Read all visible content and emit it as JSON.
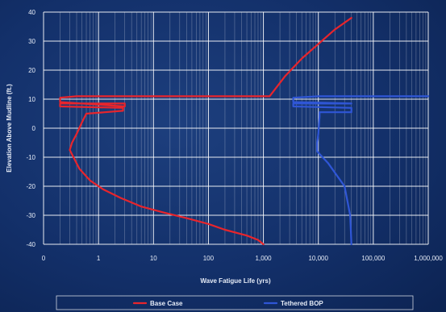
{
  "chart_data": {
    "type": "line",
    "title": "",
    "xlabel": "Wave Fatigue Life (yrs)",
    "ylabel": "Elevation Above Mudline (ft.)",
    "xscale": "log",
    "xlim": [
      0.1,
      1000000
    ],
    "ylim": [
      -40,
      40
    ],
    "xticks": [
      {
        "value": 0.1,
        "label": "0"
      },
      {
        "value": 1,
        "label": "1"
      },
      {
        "value": 10,
        "label": "10"
      },
      {
        "value": 100,
        "label": "100"
      },
      {
        "value": 1000,
        "label": "1,000"
      },
      {
        "value": 10000,
        "label": "10,000"
      },
      {
        "value": 100000,
        "label": "100,000"
      },
      {
        "value": 1000000,
        "label": "1,000,000"
      }
    ],
    "yticks": [
      {
        "value": -40,
        "label": "-40"
      },
      {
        "value": -30,
        "label": "-30"
      },
      {
        "value": -20,
        "label": "-20"
      },
      {
        "value": -10,
        "label": "-10"
      },
      {
        "value": 0,
        "label": "0"
      },
      {
        "value": 10,
        "label": "10"
      },
      {
        "value": 20,
        "label": "20"
      },
      {
        "value": 30,
        "label": "30"
      },
      {
        "value": 40,
        "label": "40"
      }
    ],
    "grid": true,
    "legend_position": "bottom",
    "series": [
      {
        "name": "Base Case",
        "color": "#e8252c",
        "points": [
          [
            1000,
            -40
          ],
          [
            800,
            -38.5
          ],
          [
            500,
            -37
          ],
          [
            200,
            -35
          ],
          [
            100,
            -33
          ],
          [
            40,
            -31
          ],
          [
            15,
            -29
          ],
          [
            6,
            -27
          ],
          [
            2.5,
            -24
          ],
          [
            1.2,
            -21
          ],
          [
            0.7,
            -18
          ],
          [
            0.45,
            -14
          ],
          [
            0.35,
            -10
          ],
          [
            0.3,
            -7.5
          ],
          [
            0.33,
            -5
          ],
          [
            0.4,
            -2
          ],
          [
            0.5,
            2
          ],
          [
            0.6,
            5
          ],
          [
            2.8,
            6
          ],
          [
            2.8,
            7
          ],
          [
            0.2,
            7.5
          ],
          [
            0.2,
            8.5
          ],
          [
            3,
            8.5
          ],
          [
            3,
            7.5
          ],
          [
            0.2,
            9
          ],
          [
            0.2,
            10.5
          ],
          [
            0.4,
            11
          ],
          [
            1300,
            11
          ],
          [
            2500,
            18
          ],
          [
            5000,
            24
          ],
          [
            10000,
            29
          ],
          [
            20000,
            34
          ],
          [
            40000,
            38
          ]
        ]
      },
      {
        "name": "Tethered BOP",
        "color": "#2f56d6",
        "points": [
          [
            40000,
            -40
          ],
          [
            38000,
            -30
          ],
          [
            30000,
            -20
          ],
          [
            15000,
            -12
          ],
          [
            9500,
            -8
          ],
          [
            9500,
            -5
          ],
          [
            10000,
            -2
          ],
          [
            10500,
            4
          ],
          [
            10500,
            5.5
          ],
          [
            40000,
            5.5
          ],
          [
            40000,
            7
          ],
          [
            3500,
            7.5
          ],
          [
            3500,
            8.5
          ],
          [
            40000,
            8.5
          ],
          [
            3500,
            9
          ],
          [
            3500,
            10.5
          ],
          [
            10000,
            11
          ],
          [
            1000000,
            11
          ]
        ]
      }
    ]
  }
}
